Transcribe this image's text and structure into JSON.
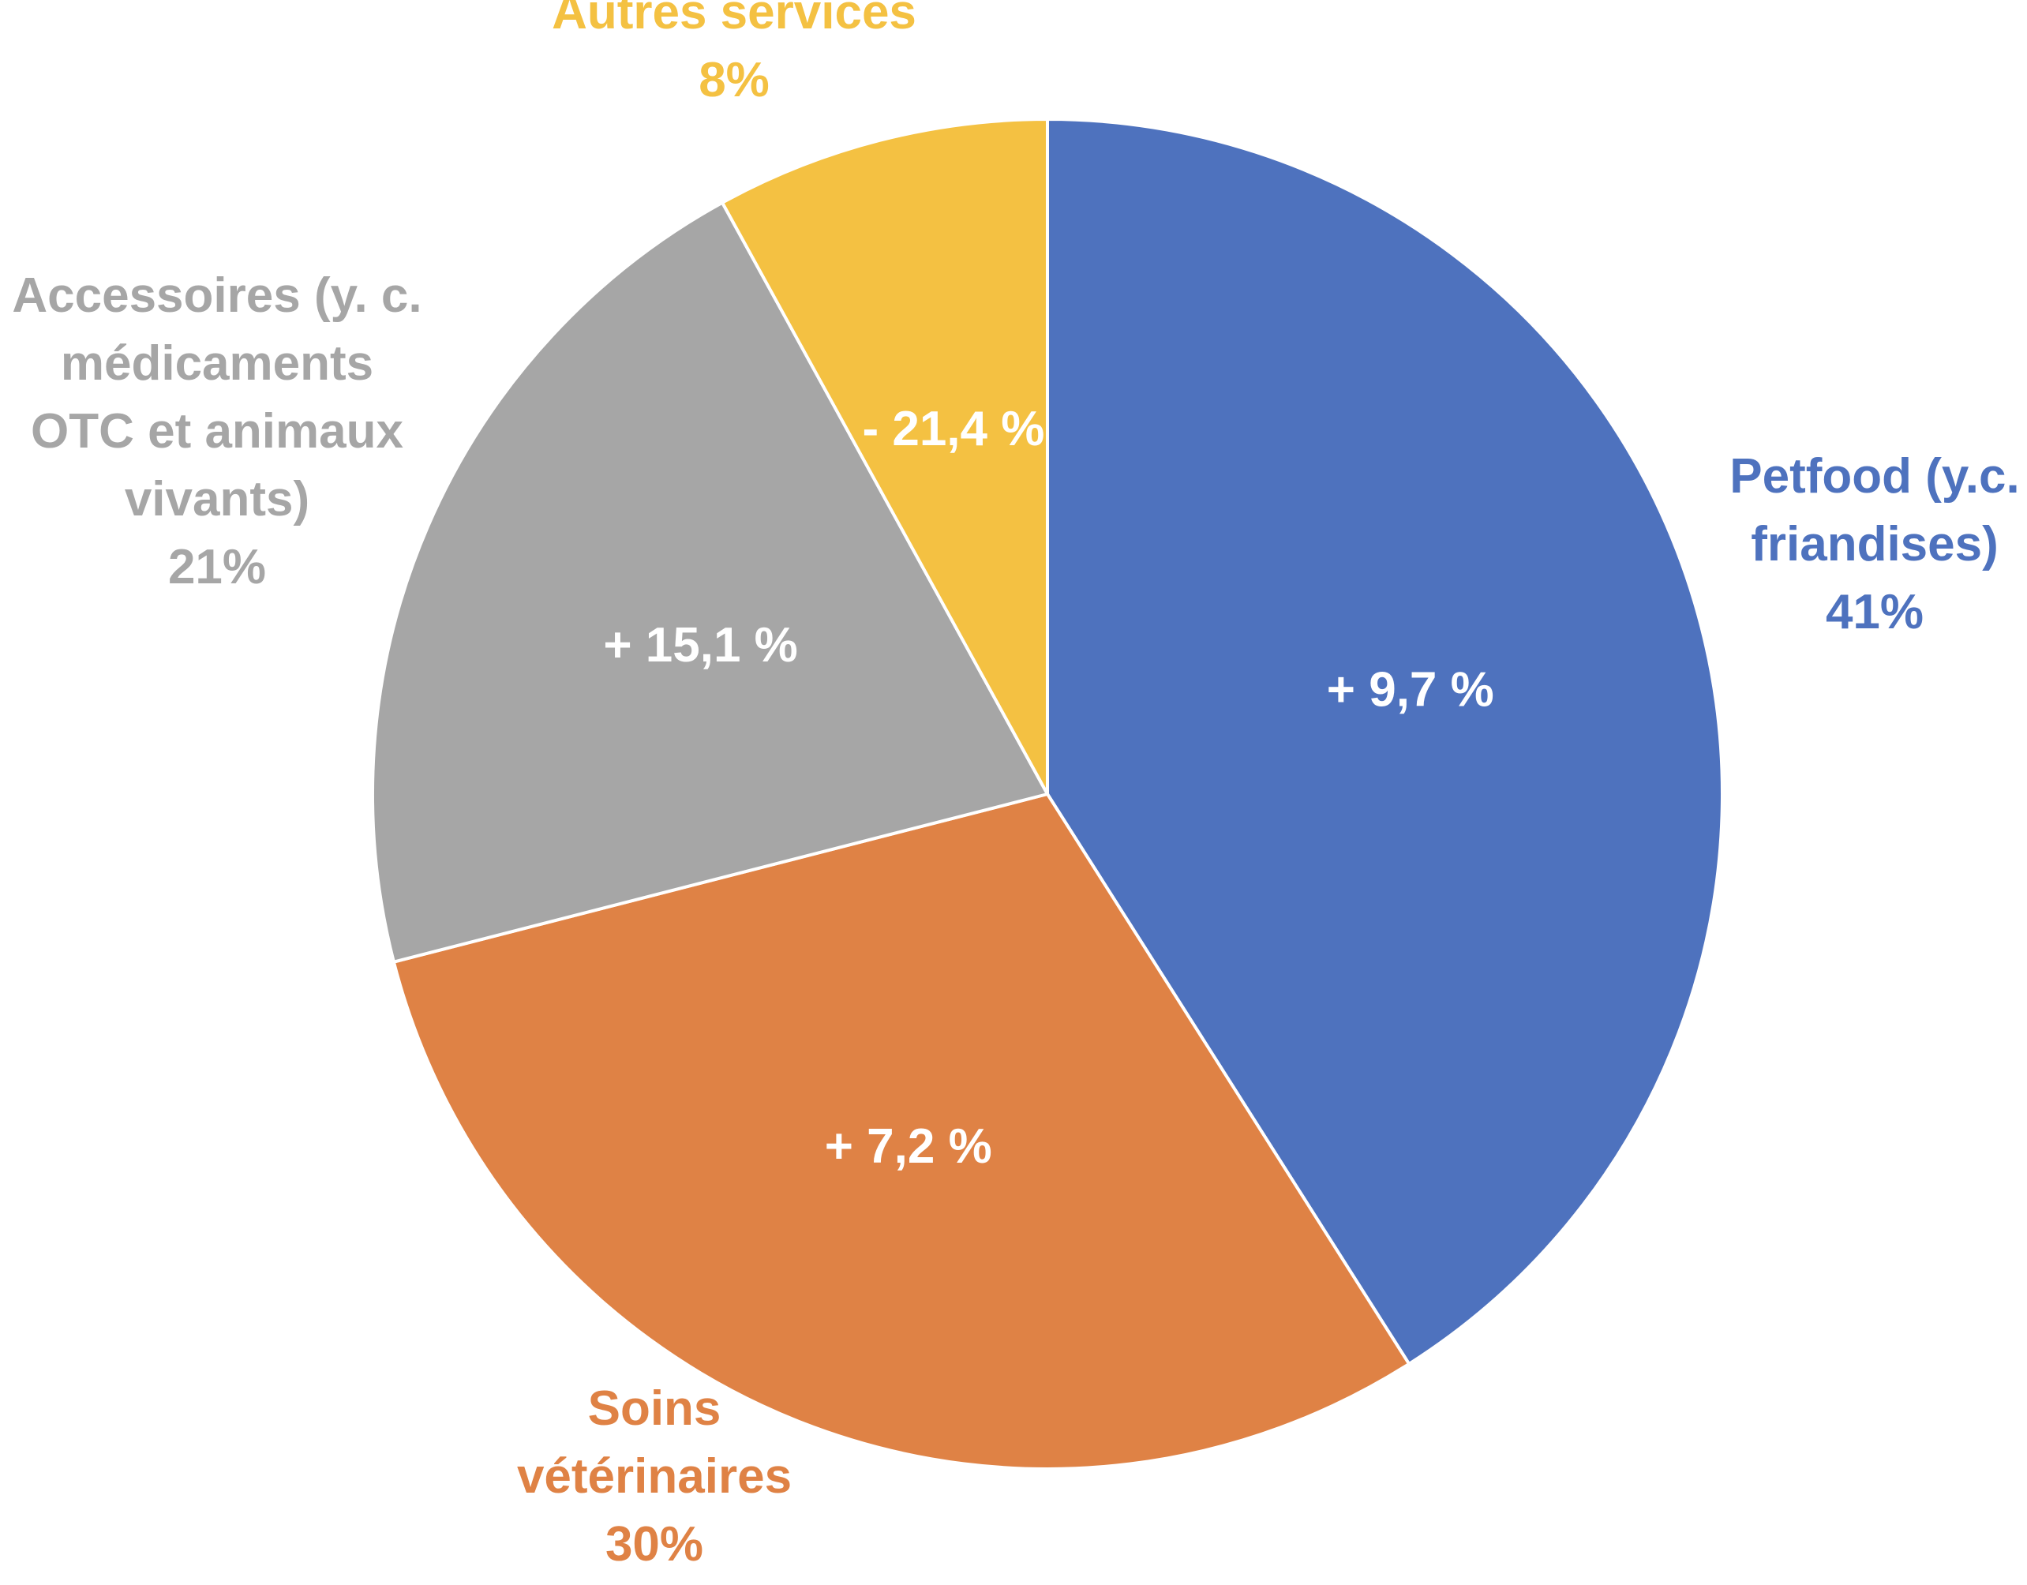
{
  "chart_data": {
    "type": "pie",
    "title": "",
    "slices": [
      {
        "label_lines": [
          "Petfood (y.c.",
          "friandises)"
        ],
        "percent_label": "41%",
        "value": 41,
        "change_label": "+ 9,7 %",
        "color": "#4E72BE"
      },
      {
        "label_lines": [
          "Soins",
          "vétérinaires"
        ],
        "percent_label": "30%",
        "value": 30,
        "change_label": "+ 7,2 %",
        "color": "#DF8245"
      },
      {
        "label_lines": [
          "Accessoires (y. c.",
          "médicaments",
          "OTC et animaux",
          "vivants)"
        ],
        "percent_label": "21%",
        "value": 21,
        "change_label": "+ 15,1 %",
        "color": "#A6A6A6"
      },
      {
        "label_lines": [
          "Autres services"
        ],
        "percent_label": "8%",
        "value": 8,
        "change_label": "- 21,4 %",
        "color": "#F4C142"
      }
    ],
    "start_angle": "12 o'clock",
    "direction": "clockwise",
    "legend": "none"
  }
}
